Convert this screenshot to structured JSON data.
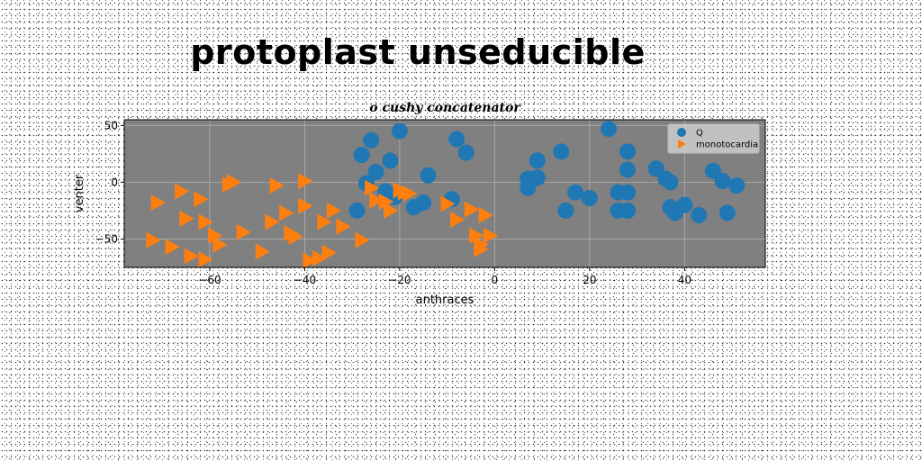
{
  "page": {
    "title": "protoplast unseducible"
  },
  "chart_data": {
    "type": "scatter",
    "title": "o cushy concatenator",
    "xlabel": "anthraces",
    "ylabel": "venter",
    "xlim": [
      -78,
      57
    ],
    "ylim": [
      -75,
      55
    ],
    "xticks": [
      -60,
      -40,
      -20,
      0,
      20,
      40
    ],
    "yticks": [
      -50,
      0,
      50
    ],
    "grid": true,
    "legend_position": "top-right",
    "series": [
      {
        "name": "Q",
        "marker": "circle",
        "color": "#1f77b4",
        "points": [
          [
            -26,
            37
          ],
          [
            -28,
            24
          ],
          [
            -20,
            45
          ],
          [
            -22,
            19
          ],
          [
            -25,
            9
          ],
          [
            -27,
            -1
          ],
          [
            -29,
            -25
          ],
          [
            -23,
            -8
          ],
          [
            -15,
            -18
          ],
          [
            -14,
            6
          ],
          [
            -17,
            -22
          ],
          [
            -8,
            38
          ],
          [
            -6,
            26
          ],
          [
            -9,
            -15
          ],
          [
            -21,
            -13
          ],
          [
            7,
            3
          ],
          [
            7,
            -5
          ],
          [
            9,
            19
          ],
          [
            9,
            4
          ],
          [
            14,
            27
          ],
          [
            17,
            -9
          ],
          [
            20,
            -14
          ],
          [
            15,
            -25
          ],
          [
            24,
            47
          ],
          [
            28,
            27
          ],
          [
            28,
            11
          ],
          [
            26,
            -9
          ],
          [
            28,
            -9
          ],
          [
            26,
            -25
          ],
          [
            28,
            -25
          ],
          [
            34,
            12
          ],
          [
            36,
            3
          ],
          [
            37,
            0
          ],
          [
            37,
            -22
          ],
          [
            38,
            -27
          ],
          [
            40,
            -20
          ],
          [
            43,
            -29
          ],
          [
            46,
            10
          ],
          [
            48,
            1
          ],
          [
            51,
            -3
          ],
          [
            49,
            -27
          ]
        ]
      },
      {
        "name": "monotocardia",
        "marker": "triangle-right",
        "color": "#ff7f0e",
        "points": [
          [
            -71,
            -18
          ],
          [
            -66,
            -8
          ],
          [
            -62,
            -15
          ],
          [
            -65,
            -32
          ],
          [
            -61,
            -35
          ],
          [
            -59,
            -47
          ],
          [
            -72,
            -51
          ],
          [
            -68,
            -57
          ],
          [
            -64,
            -65
          ],
          [
            -61,
            -68
          ],
          [
            -58,
            -55
          ],
          [
            -55,
            0
          ],
          [
            -56,
            -2
          ],
          [
            -53,
            -44
          ],
          [
            -49,
            -61
          ],
          [
            -47,
            -35
          ],
          [
            -46,
            -3
          ],
          [
            -44,
            -27
          ],
          [
            -43,
            -45
          ],
          [
            -42,
            -48
          ],
          [
            -40,
            1
          ],
          [
            -40,
            -21
          ],
          [
            -39,
            -69
          ],
          [
            -37,
            -67
          ],
          [
            -36,
            -35
          ],
          [
            -35,
            -62
          ],
          [
            -34,
            -25
          ],
          [
            -32,
            -39
          ],
          [
            -28,
            -51
          ],
          [
            -26,
            -5
          ],
          [
            -25,
            -16
          ],
          [
            -23,
            -17
          ],
          [
            -22,
            -25
          ],
          [
            -20,
            -7
          ],
          [
            -19,
            -9
          ],
          [
            -18,
            -10
          ],
          [
            -10,
            -19
          ],
          [
            -8,
            -33
          ],
          [
            -5,
            -24
          ],
          [
            -4,
            -47
          ],
          [
            -3,
            -55
          ],
          [
            -3,
            -59
          ],
          [
            -2,
            -29
          ],
          [
            -1,
            -47
          ]
        ]
      }
    ]
  }
}
